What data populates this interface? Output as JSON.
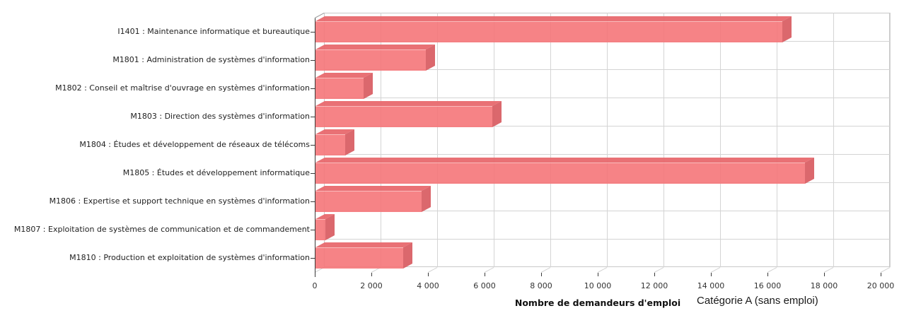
{
  "chart_data": {
    "type": "bar",
    "orientation": "horizontal",
    "style": "3d",
    "xlabel": "Nombre de demandeurs d'emploi",
    "annotation": "Catégorie A (sans emploi)",
    "categories": [
      "I1401 : Maintenance informatique et bureautique",
      "M1801 : Administration de systèmes d'information",
      "M1802 : Conseil et maîtrise d'ouvrage en systèmes d'information",
      "M1803 : Direction des systèmes d'information",
      "M1804 : Études et développement de réseaux de télécoms",
      "M1805 : Études et développement informatique",
      "M1806 : Expertise et support technique en systèmes d'information",
      "M1807 : Exploitation de systèmes de communication et de commandement",
      "M1810 : Production et exploitation de systèmes d'information"
    ],
    "values": [
      16500,
      3900,
      1700,
      6250,
      1050,
      17300,
      3750,
      350,
      3100
    ],
    "xlim": [
      0,
      20000
    ],
    "x_tick_step": 2000,
    "x_tick_labels": [
      "0",
      "2 000",
      "4 000",
      "6 000",
      "8 000",
      "10 000",
      "12 000",
      "14 000",
      "16 000",
      "18 000",
      "20 000"
    ],
    "grid": "on",
    "legend": "none",
    "colors": {
      "bar_front": "rgba(245,118,121,0.9)",
      "bar_top": "rgba(232,105,110,0.95)",
      "bar_side": "rgba(217,96,101,0.95)",
      "gridline": "#d4d4d4",
      "backwall_border": "#c9c9c9",
      "axis": "#3a3a3a",
      "text": "#222222"
    }
  }
}
